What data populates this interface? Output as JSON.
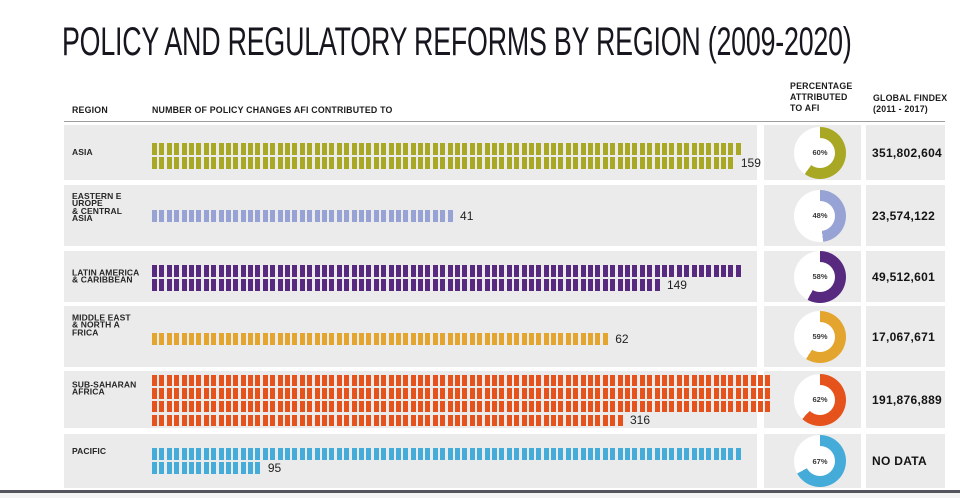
{
  "title": "POLICY AND REGULATORY REFORMS BY REGION (2009-2020)",
  "columns": {
    "region": "REGION",
    "policy_changes": "NUMBER OF POLICY CHANGES AFI CONTRIBUTED TO",
    "percentage_lines": [
      "PERCENTAGE",
      "ATTRIBUTED",
      "TO AFI"
    ],
    "findex_lines": [
      "GLOBAL FINDEX",
      "(2011 - 2017)"
    ]
  },
  "chart_data": {
    "type": "bar",
    "subtype": "pictograph-with-donuts",
    "note": "each small dash = 1 policy change; donut = percentage attributed to AFI",
    "regions": [
      {
        "name_lines": [
          "ASIA"
        ],
        "policy_changes": 159,
        "rows": [
          80,
          79
        ],
        "pct": 60,
        "findex": "351,802,604",
        "color": "#a9a824"
      },
      {
        "name_lines": [
          "EASTERN E",
          "UROPE",
          "& CENTRAL",
          "ASIA"
        ],
        "policy_changes": 41,
        "rows": [
          41
        ],
        "pct": 48,
        "findex": "23,574,122",
        "color": "#97a3d4"
      },
      {
        "name_lines": [
          "LATIN AMERICA",
          "& CARIBBEAN"
        ],
        "policy_changes": 149,
        "rows": [
          80,
          69
        ],
        "pct": 58,
        "findex": "49,512,601",
        "color": "#572a80"
      },
      {
        "name_lines": [
          "MIDDLE EAST",
          "& NORTH A",
          "FRICA"
        ],
        "policy_changes": 62,
        "rows": [
          62
        ],
        "pct": 59,
        "findex": "17,067,671",
        "color": "#e3a52e"
      },
      {
        "name_lines": [
          "SUB-SAHARAN",
          "AFRICA"
        ],
        "policy_changes": 316,
        "rows": [
          84,
          84,
          84,
          64
        ],
        "pct": 62,
        "findex": "191,876,889",
        "color": "#e5521b"
      },
      {
        "name_lines": [
          "PACIFIC"
        ],
        "policy_changes": 95,
        "rows": [
          80,
          15
        ],
        "pct": 67,
        "findex": "NO DATA",
        "color": "#45abd8"
      }
    ]
  }
}
